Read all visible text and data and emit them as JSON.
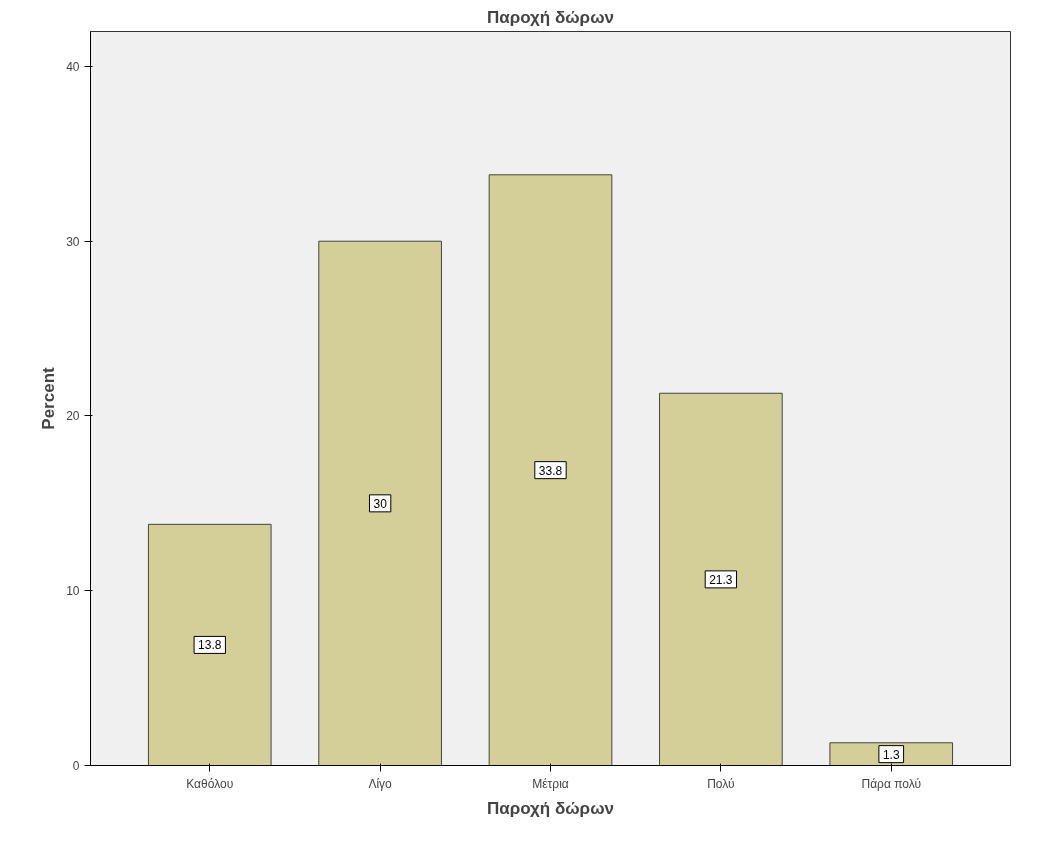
{
  "chart_data": {
    "type": "bar",
    "title": "Παροχή δώρων",
    "xlabel": "Παροχή δώρων",
    "ylabel": "Percent",
    "categories": [
      "Καθόλου",
      "Λίγο",
      "Μέτρια",
      "Πολύ",
      "Πάρα πολύ"
    ],
    "values": [
      13.8,
      30,
      33.8,
      21.3,
      1.3
    ],
    "color": "#d4cf99",
    "ylim": [
      0,
      42
    ],
    "yticks": [
      0,
      10,
      20,
      30,
      40
    ],
    "data_labels": true,
    "grid": false
  }
}
